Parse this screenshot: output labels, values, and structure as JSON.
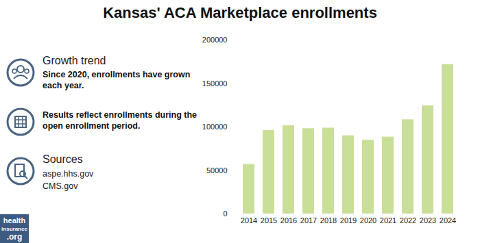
{
  "chart_data": {
    "type": "bar",
    "title": "Kansas' ACA Marketplace enrollments",
    "categories": [
      "2014",
      "2015",
      "2016",
      "2017",
      "2018",
      "2019",
      "2020",
      "2021",
      "2022",
      "2023",
      "2024"
    ],
    "values": [
      57000,
      96200,
      101500,
      98200,
      98800,
      90000,
      84900,
      88500,
      108400,
      124500,
      172000
    ],
    "color": "#c9df98",
    "ylim": [
      0,
      200000
    ],
    "yticks": [
      0,
      50000,
      100000,
      150000,
      200000
    ],
    "grid": false,
    "annotations": [
      {
        "title": "Growth trend",
        "lines": [
          "Since 2020, enrollments have grown each year."
        ]
      },
      {
        "lines": [
          "Results reflect enrollments during the open enrollment period."
        ]
      },
      {
        "title": "Sources",
        "lines": [
          "aspe.hhs.gov",
          "CMS.gov"
        ]
      }
    ],
    "logo": [
      "health",
      "insurance",
      ".org"
    ]
  }
}
